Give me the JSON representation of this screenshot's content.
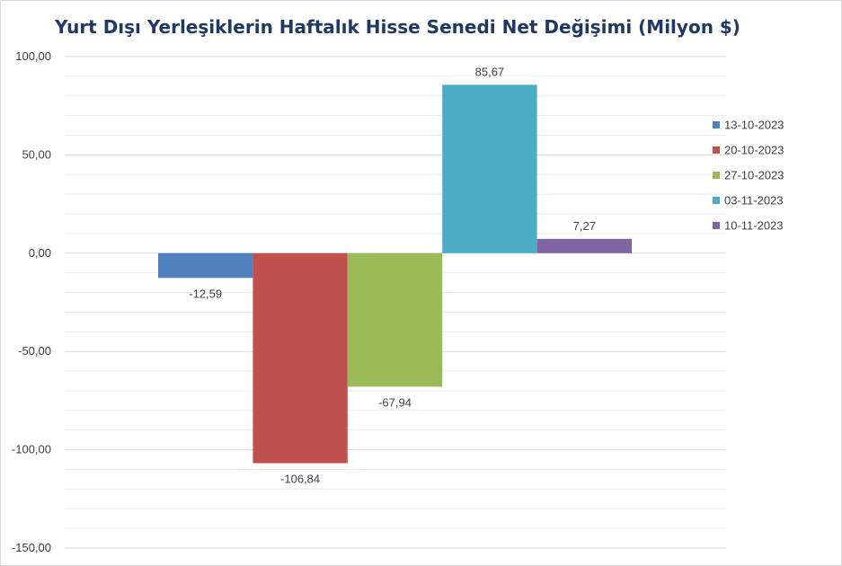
{
  "chart_data": {
    "type": "bar",
    "title": "Yurt Dışı Yerleşiklerin Haftalık Hisse Senedi Net Değişimi (Milyon $)",
    "xlabel": "",
    "ylabel": "",
    "ylim": [
      -150,
      100
    ],
    "yticks": [
      "100,00",
      "50,00",
      "0,00",
      "-50,00",
      "-100,00",
      "-150,00"
    ],
    "ytick_values": [
      100,
      50,
      0,
      -50,
      -100,
      -150
    ],
    "minor_grid_step": 10,
    "grid": true,
    "legend_position": "right",
    "series": [
      {
        "name": "13-10-2023",
        "value": -12.59,
        "label": "-12,59",
        "color": "#4f81bd"
      },
      {
        "name": "20-10-2023",
        "value": -106.84,
        "label": "-106,84",
        "color": "#c0504d"
      },
      {
        "name": "27-10-2023",
        "value": -67.94,
        "label": "-67,94",
        "color": "#9bbb59"
      },
      {
        "name": "03-11-2023",
        "value": 85.67,
        "label": "85,67",
        "color": "#4bacc6"
      },
      {
        "name": "10-11-2023",
        "value": 7.27,
        "label": "7,27",
        "color": "#8064a2"
      }
    ]
  }
}
